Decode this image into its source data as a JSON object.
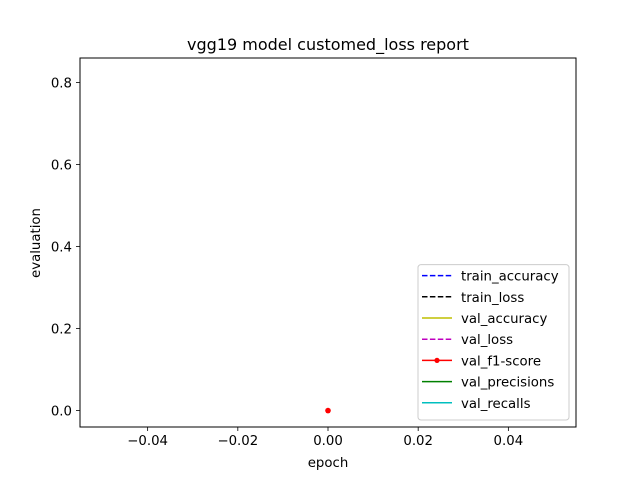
{
  "chart_data": {
    "type": "line",
    "title": "vgg19 model customed_loss report",
    "xlabel": "epoch",
    "ylabel": "evaluation",
    "xlim": [
      -0.055,
      0.055
    ],
    "ylim": [
      -0.04,
      0.86
    ],
    "xticks": [
      -0.04,
      -0.02,
      0.0,
      0.02,
      0.04
    ],
    "xtick_labels": [
      "−0.04",
      "−0.02",
      "0.00",
      "0.02",
      "0.04"
    ],
    "yticks": [
      0.0,
      0.2,
      0.4,
      0.6,
      0.8
    ],
    "ytick_labels": [
      "0.0",
      "0.2",
      "0.4",
      "0.6",
      "0.8"
    ],
    "grid": false,
    "legend_position": "lower-right",
    "series": [
      {
        "name": "train_accuracy",
        "color": "#0000ff",
        "dash": "dashed",
        "marker": "none",
        "x": [],
        "y": []
      },
      {
        "name": "train_loss",
        "color": "#000000",
        "dash": "dashed",
        "marker": "none",
        "x": [],
        "y": []
      },
      {
        "name": "val_accuracy",
        "color": "#bfbf00",
        "dash": "solid",
        "marker": "none",
        "x": [],
        "y": []
      },
      {
        "name": "val_loss",
        "color": "#bf00bf",
        "dash": "dashed",
        "marker": "none",
        "x": [],
        "y": []
      },
      {
        "name": "val_f1-score",
        "color": "#ff0000",
        "dash": "solid",
        "marker": "dot",
        "x": [
          0
        ],
        "y": [
          0.0
        ]
      },
      {
        "name": "val_precisions",
        "color": "#008000",
        "dash": "solid",
        "marker": "none",
        "x": [],
        "y": []
      },
      {
        "name": "val_recalls",
        "color": "#00bfbf",
        "dash": "solid",
        "marker": "none",
        "x": [],
        "y": []
      }
    ]
  }
}
